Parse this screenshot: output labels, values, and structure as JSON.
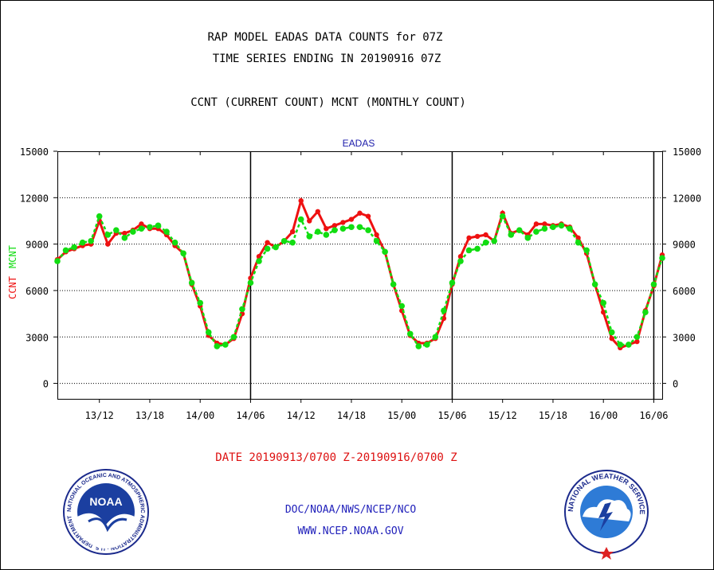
{
  "header": {
    "title_line1": "RAP MODEL EADAS DATA COUNTS for 07Z",
    "title_line2": "TIME SERIES ENDING IN 20190916 07Z",
    "subtitle": "CCNT (CURRENT COUNT) MCNT (MONTHLY COUNT)"
  },
  "footer": {
    "date_range": "DATE 20190913/0700 Z-20190916/0700 Z",
    "org_line": "DOC/NOAA/NWS/NCEP/NCO",
    "url_line": "WWW.NCEP.NOAA.GOV"
  },
  "logos": {
    "noaa_text": "NOAA",
    "noaa_ring_text": "NATIONAL OCEANIC AND ATMOSPHERIC ADMINISTRATION · U.S. DEPARTMENT OF COMMERCE ·",
    "nws_ring_text": "NATIONAL WEATHER SERVICE"
  },
  "colors": {
    "ccnt": "#ee1111",
    "mcnt": "#11dd11",
    "plot_title": "#1a1aaa",
    "footer_text": "#2222bb",
    "date_text": "#dd1111",
    "grid": "#000000"
  },
  "chart_data": {
    "type": "line",
    "title": "EADAS",
    "ylabel_parts": [
      {
        "text": "CCNT",
        "series": "CCNT"
      },
      {
        "text": "MCNT",
        "series": "MCNT"
      }
    ],
    "ylim": [
      -1000,
      15000
    ],
    "yticks": [
      0,
      3000,
      6000,
      9000,
      12000,
      15000
    ],
    "ytick_labels": [
      "0",
      "3000",
      "6000",
      "9000",
      "12000",
      "15000"
    ],
    "x_unit": "hours since 2019-09-13 07Z",
    "xlim": [
      0,
      72
    ],
    "xticks": [
      5,
      11,
      17,
      23,
      29,
      35,
      41,
      47,
      53,
      59,
      65,
      71
    ],
    "xtick_labels": [
      "13/12",
      "13/18",
      "14/00",
      "14/06",
      "14/12",
      "14/18",
      "15/00",
      "15/06",
      "15/12",
      "15/18",
      "16/00",
      "16/06"
    ],
    "vlines": [
      23,
      47,
      71
    ],
    "grid": true,
    "legend": "none",
    "series": [
      {
        "name": "CCNT",
        "values": [
          8000,
          8500,
          8700,
          8900,
          9000,
          10500,
          9000,
          9700,
          9700,
          9900,
          10300,
          10000,
          10000,
          9600,
          8900,
          8400,
          6400,
          5000,
          3100,
          2600,
          2500,
          2900,
          4500,
          6800,
          8200,
          9100,
          8800,
          9200,
          9800,
          11800,
          10500,
          11100,
          10000,
          10200,
          10400,
          10600,
          11000,
          10800,
          9600,
          8500,
          6400,
          4700,
          3100,
          2600,
          2600,
          2900,
          4200,
          6400,
          8200,
          9400,
          9500,
          9600,
          9200,
          11000,
          9700,
          9900,
          9600,
          10300,
          10300,
          10200,
          10300,
          10100,
          9400,
          8400,
          6400,
          4600,
          2900,
          2300,
          2500,
          2700,
          4700,
          6300,
          8300
        ]
      },
      {
        "name": "MCNT",
        "values": [
          7900,
          8600,
          8800,
          9100,
          9200,
          10800,
          9600,
          9900,
          9400,
          9800,
          10000,
          10100,
          10200,
          9800,
          9100,
          8400,
          6500,
          5200,
          3300,
          2400,
          2500,
          3000,
          4800,
          6500,
          7900,
          8700,
          8800,
          9200,
          9100,
          10600,
          9500,
          9800,
          9600,
          9900,
          10000,
          10100,
          10100,
          9900,
          9200,
          8500,
          6400,
          5000,
          3200,
          2400,
          2500,
          3000,
          4700,
          6500,
          7900,
          8600,
          8700,
          9100,
          9200,
          10800,
          9600,
          9900,
          9400,
          9800,
          10000,
          10100,
          10200,
          10000,
          9100,
          8600,
          6400,
          5200,
          3300,
          2500,
          2500,
          3000,
          4600,
          6400,
          8100
        ]
      }
    ]
  }
}
